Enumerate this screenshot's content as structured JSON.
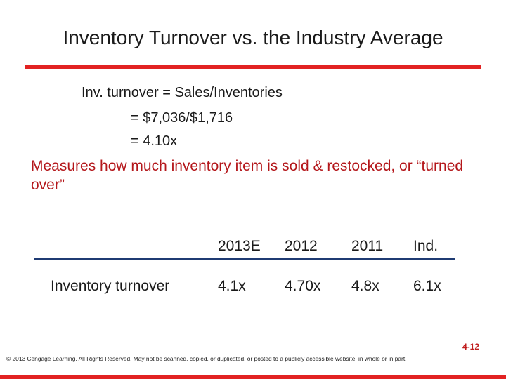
{
  "slide": {
    "title": "Inventory Turnover vs. the Industry Average",
    "formula": {
      "line1": "Inv. turnover = Sales/Inventories",
      "line2": "= $7,036/$1,716",
      "line3": "= 4.10x"
    },
    "measure_text": "Measures how much inventory item is sold & restocked, or “turned over”",
    "table": {
      "headers": [
        "2013E",
        "2012",
        "2011",
        "Ind."
      ],
      "row_label": "Inventory turnover",
      "values": [
        "4.1x",
        "4.70x",
        "4.8x",
        "6.1x"
      ]
    },
    "page_number": "4-12",
    "copyright": "© 2013 Cengage Learning. All Rights Reserved. May not be scanned, copied, or duplicated, or posted to a publicly accessible website, in whole or in part."
  },
  "colors": {
    "accent_red": "#e22222",
    "text_red": "#b4171b",
    "table_rule_blue": "#1f3b73",
    "page_number_red": "#c01e1e"
  }
}
